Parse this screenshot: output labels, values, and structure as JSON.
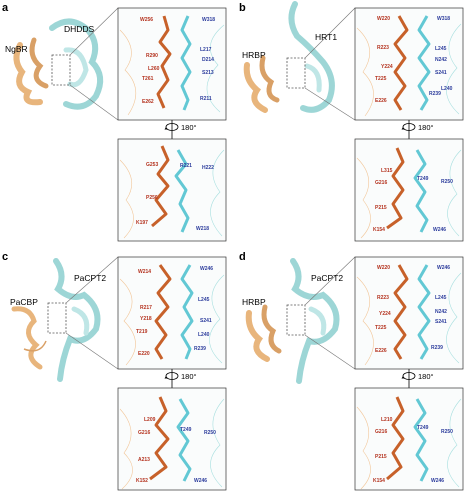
{
  "rotation": "180°",
  "panels": [
    {
      "label": "a",
      "protein_left": "NgBR",
      "protein_right": "DHDDS",
      "top_orange": [
        "W256",
        "R290",
        "L260",
        "T261",
        "E262"
      ],
      "top_cyan": [
        "W318",
        "L217",
        "D214",
        "S213",
        "R211"
      ],
      "bottom_orange": [
        "G253",
        "P256",
        "K197"
      ],
      "bottom_cyan": [
        "R221",
        "H222",
        "W218"
      ]
    },
    {
      "label": "b",
      "protein_left": "HRBP",
      "protein_right": "HRT1",
      "top_orange": [
        "W220",
        "R223",
        "Y224",
        "T225",
        "E226"
      ],
      "top_cyan": [
        "W318",
        "L245",
        "N242",
        "S241",
        "R239",
        "L240"
      ],
      "bottom_orange": [
        "L315",
        "G216",
        "P215",
        "K154"
      ],
      "bottom_cyan": [
        "T249",
        "R250",
        "W246"
      ]
    },
    {
      "label": "c",
      "protein_left": "PaCBP",
      "protein_right": "PaCPT2",
      "top_orange": [
        "W214",
        "R217",
        "Y218",
        "T219",
        "E220"
      ],
      "top_cyan": [
        "W246",
        "L245",
        "S241",
        "L240",
        "R239"
      ],
      "bottom_orange": [
        "L209",
        "G216",
        "A213",
        "K152"
      ],
      "bottom_cyan": [
        "T249",
        "R250",
        "W246"
      ]
    },
    {
      "label": "d",
      "protein_left": "HRBP",
      "protein_right": "PaCPT2",
      "top_orange": [
        "W220",
        "R223",
        "Y224",
        "T225",
        "E226"
      ],
      "top_cyan": [
        "W246",
        "L245",
        "N242",
        "S241",
        "R239"
      ],
      "bottom_orange": [
        "L210",
        "G216",
        "P215",
        "K154"
      ],
      "bottom_cyan": [
        "T249",
        "R250",
        "W246"
      ]
    }
  ]
}
